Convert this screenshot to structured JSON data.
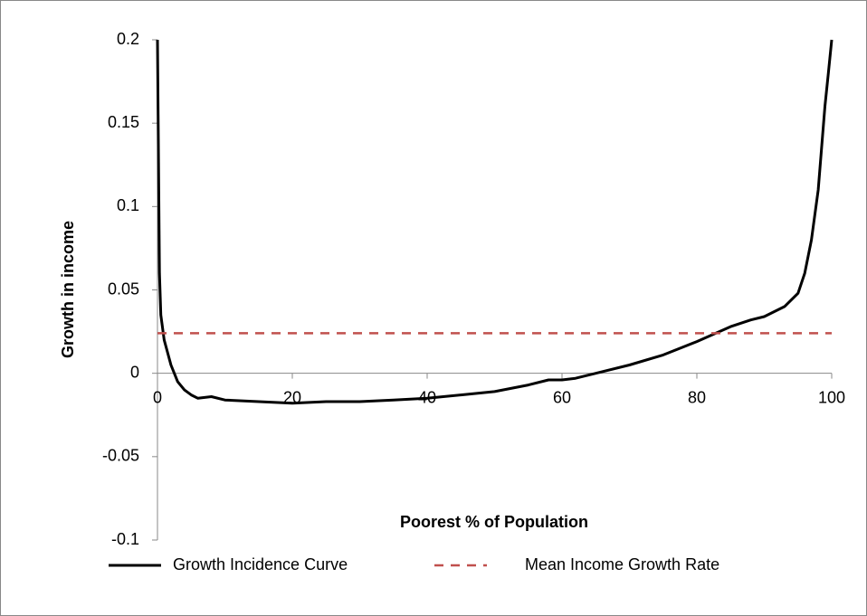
{
  "chart_data": {
    "type": "line",
    "x_label": "Poorest % of Population",
    "y_label": "Growth in income",
    "xlim": [
      0,
      100
    ],
    "xticks": [
      0,
      20,
      40,
      60,
      80,
      100
    ],
    "ylim": [
      -0.1,
      0.2
    ],
    "yticks": [
      -0.1,
      -0.05,
      0,
      0.05,
      0.1,
      0.15,
      0.2
    ],
    "grid": false,
    "legend": "bottom",
    "series": [
      {
        "name": "Growth Incidence Curve",
        "color": "#000000",
        "dashed": false,
        "x": [
          0,
          0.3,
          0.5,
          1,
          2,
          3,
          4,
          5,
          6,
          8,
          10,
          15,
          20,
          25,
          30,
          35,
          40,
          45,
          50,
          55,
          58,
          60,
          62,
          65,
          70,
          75,
          80,
          85,
          88,
          90,
          93,
          95,
          96,
          97,
          98,
          99,
          99.5,
          100
        ],
        "values": [
          0.2,
          0.06,
          0.035,
          0.02,
          0.005,
          -0.005,
          -0.01,
          -0.013,
          -0.015,
          -0.014,
          -0.016,
          -0.017,
          -0.018,
          -0.017,
          -0.017,
          -0.016,
          -0.015,
          -0.013,
          -0.011,
          -0.007,
          -0.004,
          -0.004,
          -0.003,
          0.0,
          0.005,
          0.011,
          0.019,
          0.028,
          0.032,
          0.034,
          0.04,
          0.048,
          0.06,
          0.08,
          0.11,
          0.16,
          0.18,
          0.2
        ]
      },
      {
        "name": "Mean Income Growth Rate",
        "color": "#c0504d",
        "dashed": true,
        "x": [
          0,
          100
        ],
        "values": [
          0.024,
          0.024
        ]
      }
    ]
  }
}
